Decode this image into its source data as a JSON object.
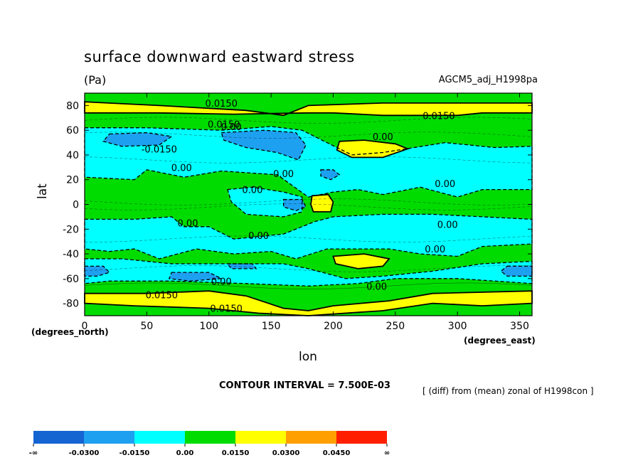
{
  "header": {
    "title": "surface downward eastward stress",
    "units": "(Pa)",
    "run": "AGCM5_adj_H1998pa"
  },
  "footer": {
    "contour_interval": "CONTOUR INTERVAL = 7.500E-03",
    "difference": "[ (diff) from (mean) zonal of H1998con ]"
  },
  "axis_notes": {
    "y_units": "(degrees_north)",
    "x_units": "(degrees_east)"
  },
  "colors": {
    "level_neg_inf": "#1464D2",
    "level_neg_0300": "#1EA0F0",
    "level_neg_0150": "#00FFFF",
    "level_000": "#00DC00",
    "level_0150": "#FFFF00",
    "level_0300": "#FFA000",
    "level_0450": "#FF1E00"
  },
  "chart_data": {
    "type": "contour",
    "title": "surface downward eastward stress",
    "xlabel": "lon",
    "ylabel": "lat",
    "xlim": [
      0,
      360
    ],
    "ylim": [
      -90,
      90
    ],
    "xticks": [
      "0",
      "50",
      "100",
      "150",
      "200",
      "250",
      "300",
      "350"
    ],
    "yticks": [
      "80",
      "60",
      "40",
      "20",
      "0",
      "-20",
      "-40",
      "-60",
      "-80"
    ],
    "contour_interval": 0.0075,
    "legend": {
      "labels": [
        "-∞",
        "-0.0300",
        "-0.0150",
        "0.00",
        "0.0150",
        "0.0300",
        "0.0450",
        "∞"
      ],
      "colors": [
        "#1464D2",
        "#1EA0F0",
        "#00FFFF",
        "#00DC00",
        "#FFFF00",
        "#FFA000",
        "#FF1E00"
      ]
    },
    "regions": [
      {
        "level": "0.0150",
        "color": "#FFFF00",
        "points": [
          [
            0,
            83
          ],
          [
            60,
            80
          ],
          [
            130,
            76
          ],
          [
            160,
            72
          ],
          [
            180,
            80
          ],
          [
            240,
            82
          ],
          [
            300,
            82
          ],
          [
            360,
            82
          ],
          [
            360,
            74
          ],
          [
            320,
            74
          ],
          [
            300,
            72
          ],
          [
            240,
            72
          ],
          [
            200,
            74
          ],
          [
            180,
            74
          ],
          [
            120,
            73
          ],
          [
            60,
            74
          ],
          [
            0,
            74
          ]
        ]
      },
      {
        "level": "-0.0150",
        "color": "#00FFFF",
        "points": [
          [
            0,
            62
          ],
          [
            50,
            62
          ],
          [
            110,
            60
          ],
          [
            150,
            63
          ],
          [
            175,
            60
          ],
          [
            195,
            50
          ],
          [
            215,
            40
          ],
          [
            240,
            42
          ],
          [
            290,
            50
          ],
          [
            330,
            46
          ],
          [
            360,
            47
          ],
          [
            360,
            12
          ],
          [
            320,
            12
          ],
          [
            300,
            6
          ],
          [
            270,
            14
          ],
          [
            240,
            8
          ],
          [
            220,
            12
          ],
          [
            200,
            10
          ],
          [
            180,
            6
          ],
          [
            155,
            24
          ],
          [
            110,
            27
          ],
          [
            80,
            22
          ],
          [
            50,
            28
          ],
          [
            40,
            20
          ],
          [
            0,
            22
          ]
        ]
      },
      {
        "level": "0.0150",
        "color": "#FFFF00",
        "points": [
          [
            205,
            51
          ],
          [
            225,
            52
          ],
          [
            250,
            49
          ],
          [
            260,
            45
          ],
          [
            240,
            38
          ],
          [
            215,
            38
          ],
          [
            203,
            44
          ]
        ]
      },
      {
        "level": "-0.0300",
        "color": "#1EA0F0",
        "points": [
          [
            20,
            57
          ],
          [
            50,
            58
          ],
          [
            70,
            55
          ],
          [
            60,
            48
          ],
          [
            30,
            47
          ],
          [
            15,
            51
          ]
        ]
      },
      {
        "level": "-0.0300",
        "color": "#1EA0F0",
        "points": [
          [
            110,
            58
          ],
          [
            145,
            60
          ],
          [
            170,
            58
          ],
          [
            178,
            48
          ],
          [
            172,
            36
          ],
          [
            155,
            42
          ],
          [
            130,
            46
          ],
          [
            112,
            52
          ]
        ]
      },
      {
        "level": "-0.0300",
        "color": "#1EA0F0",
        "points": [
          [
            190,
            28
          ],
          [
            200,
            28
          ],
          [
            205,
            24
          ],
          [
            198,
            20
          ],
          [
            190,
            23
          ]
        ]
      },
      {
        "level": "-0.0150",
        "color": "#00FFFF",
        "points": [
          [
            115,
            12
          ],
          [
            135,
            14
          ],
          [
            160,
            10
          ],
          [
            175,
            6
          ],
          [
            175,
            -6
          ],
          [
            160,
            -10
          ],
          [
            130,
            -8
          ],
          [
            118,
            2
          ]
        ]
      },
      {
        "level": "-0.0300",
        "color": "#1EA0F0",
        "points": [
          [
            160,
            4
          ],
          [
            175,
            4
          ],
          [
            178,
            -2
          ],
          [
            170,
            -5
          ],
          [
            160,
            -2
          ]
        ]
      },
      {
        "level": "0.0150",
        "color": "#FFFF00",
        "points": [
          [
            183,
            7
          ],
          [
            196,
            8
          ],
          [
            200,
            2
          ],
          [
            198,
            -6
          ],
          [
            184,
            -6
          ],
          [
            182,
            0
          ]
        ]
      },
      {
        "level": "-0.0150",
        "color": "#00FFFF",
        "points": [
          [
            0,
            -12
          ],
          [
            40,
            -12
          ],
          [
            70,
            -10
          ],
          [
            80,
            -18
          ],
          [
            100,
            -18
          ],
          [
            120,
            -28
          ],
          [
            160,
            -24
          ],
          [
            185,
            -14
          ],
          [
            200,
            -10
          ],
          [
            240,
            -8
          ],
          [
            280,
            -8
          ],
          [
            320,
            -10
          ],
          [
            360,
            -12
          ],
          [
            360,
            -32
          ],
          [
            320,
            -34
          ],
          [
            300,
            -42
          ],
          [
            270,
            -40
          ],
          [
            245,
            -36
          ],
          [
            215,
            -36
          ],
          [
            195,
            -36
          ],
          [
            170,
            -44
          ],
          [
            150,
            -38
          ],
          [
            120,
            -40
          ],
          [
            90,
            -36
          ],
          [
            60,
            -44
          ],
          [
            40,
            -36
          ],
          [
            20,
            -38
          ],
          [
            0,
            -36
          ]
        ]
      },
      {
        "level": "-0.0150",
        "color": "#00FFFF",
        "points": [
          [
            0,
            -44
          ],
          [
            30,
            -44
          ],
          [
            70,
            -48
          ],
          [
            120,
            -48
          ],
          [
            160,
            -48
          ],
          [
            180,
            -52
          ],
          [
            210,
            -60
          ],
          [
            240,
            -58
          ],
          [
            280,
            -54
          ],
          [
            320,
            -48
          ],
          [
            360,
            -46
          ],
          [
            360,
            -64
          ],
          [
            300,
            -60
          ],
          [
            250,
            -60
          ],
          [
            220,
            -64
          ],
          [
            180,
            -66
          ],
          [
            130,
            -64
          ],
          [
            70,
            -62
          ],
          [
            20,
            -62
          ],
          [
            0,
            -64
          ]
        ]
      },
      {
        "level": "0.0150",
        "color": "#FFFF00",
        "points": [
          [
            200,
            -42
          ],
          [
            225,
            -40
          ],
          [
            245,
            -44
          ],
          [
            240,
            -50
          ],
          [
            220,
            -52
          ],
          [
            202,
            -48
          ]
        ]
      },
      {
        "level": "-0.0300",
        "color": "#1EA0F0",
        "points": [
          [
            0,
            -50
          ],
          [
            15,
            -50
          ],
          [
            20,
            -55
          ],
          [
            10,
            -58
          ],
          [
            0,
            -58
          ]
        ]
      },
      {
        "level": "-0.0300",
        "color": "#1EA0F0",
        "points": [
          [
            340,
            -50
          ],
          [
            360,
            -50
          ],
          [
            360,
            -58
          ],
          [
            340,
            -58
          ],
          [
            335,
            -54
          ]
        ]
      },
      {
        "level": "-0.0300",
        "color": "#1EA0F0",
        "points": [
          [
            70,
            -55
          ],
          [
            100,
            -55
          ],
          [
            110,
            -60
          ],
          [
            85,
            -62
          ],
          [
            68,
            -60
          ]
        ]
      },
      {
        "level": "-0.0300",
        "color": "#1EA0F0",
        "points": [
          [
            115,
            -48
          ],
          [
            135,
            -48
          ],
          [
            138,
            -52
          ],
          [
            118,
            -52
          ]
        ]
      },
      {
        "level": "0.0150",
        "color": "#FFFF00",
        "points": [
          [
            0,
            -72
          ],
          [
            50,
            -72
          ],
          [
            100,
            -70
          ],
          [
            130,
            -74
          ],
          [
            160,
            -84
          ],
          [
            180,
            -86
          ],
          [
            200,
            -82
          ],
          [
            245,
            -78
          ],
          [
            280,
            -72
          ],
          [
            360,
            -70
          ],
          [
            360,
            -80
          ],
          [
            320,
            -82
          ],
          [
            280,
            -80
          ],
          [
            240,
            -86
          ],
          [
            180,
            -90
          ],
          [
            140,
            -88
          ],
          [
            100,
            -84
          ],
          [
            40,
            -82
          ],
          [
            0,
            -80
          ]
        ]
      }
    ],
    "contour_labels": [
      {
        "text": "0.0150",
        "x": 110,
        "y": 82
      },
      {
        "text": "0.0150",
        "x": 285,
        "y": 72
      },
      {
        "text": "0.0150",
        "x": 112,
        "y": 65
      },
      {
        "text": "0.00",
        "x": 118,
        "y": 63
      },
      {
        "text": "0.00",
        "x": 240,
        "y": 55
      },
      {
        "text": "-0.0150",
        "x": 60,
        "y": 45
      },
      {
        "text": "0.00",
        "x": 78,
        "y": 30
      },
      {
        "text": "0.00",
        "x": 160,
        "y": 25
      },
      {
        "text": "0.00",
        "x": 290,
        "y": 17
      },
      {
        "text": "0.00",
        "x": 135,
        "y": 12
      },
      {
        "text": "0.00",
        "x": 83,
        "y": -15
      },
      {
        "text": "0.00",
        "x": 140,
        "y": -25
      },
      {
        "text": "0.00",
        "x": 292,
        "y": -16
      },
      {
        "text": "0.00",
        "x": 282,
        "y": -36
      },
      {
        "text": "0.00",
        "x": 110,
        "y": -62
      },
      {
        "text": "0.00",
        "x": 235,
        "y": -66
      },
      {
        "text": "0.0150",
        "x": 62,
        "y": -73
      },
      {
        "text": "0.0150",
        "x": 114,
        "y": -84
      }
    ]
  }
}
